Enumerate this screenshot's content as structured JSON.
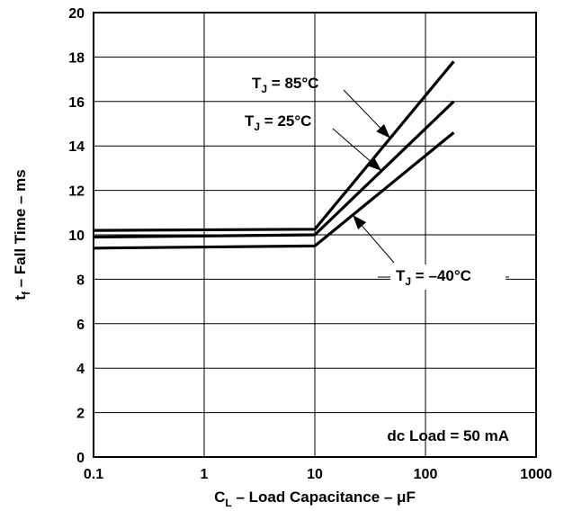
{
  "chart_data": {
    "type": "line",
    "xscale": "log",
    "xlim": [
      0.1,
      1000
    ],
    "ylim": [
      0,
      20
    ],
    "x_ticks": [
      "0.1",
      "1",
      "10",
      "100",
      "1000"
    ],
    "y_ticks": [
      "0",
      "2",
      "4",
      "6",
      "8",
      "10",
      "12",
      "14",
      "16",
      "18",
      "20"
    ],
    "x_tick_values": [
      0.1,
      1,
      10,
      100,
      1000
    ],
    "y_tick_values": [
      0,
      2,
      4,
      6,
      8,
      10,
      12,
      14,
      16,
      18,
      20
    ],
    "grid": true,
    "xlabel": {
      "main": "C",
      "sub": "L",
      "rest": " – Load Capacitance – μF"
    },
    "ylabel": {
      "main": "t",
      "sub": "f",
      "rest": "  – Fall Time – ms"
    },
    "series": [
      {
        "name": "T_J = 85°C",
        "label": {
          "main": "T",
          "sub": "J",
          "rest": " = 85°C"
        },
        "x": [
          0.1,
          10,
          180
        ],
        "y": [
          10.2,
          10.25,
          17.8
        ]
      },
      {
        "name": "T_J = 25°C",
        "label": {
          "main": "T",
          "sub": "J",
          "rest": " = 25°C"
        },
        "x": [
          0.1,
          10,
          180
        ],
        "y": [
          9.9,
          10.0,
          16.0
        ]
      },
      {
        "name": "T_J = –40°C",
        "label": {
          "main": "T",
          "sub": "J",
          "rest": " = –40°C"
        },
        "x": [
          0.1,
          10,
          180
        ],
        "y": [
          9.4,
          9.5,
          14.6
        ]
      }
    ],
    "annotations": [
      {
        "text": "dc Load = 50 mA"
      }
    ]
  }
}
